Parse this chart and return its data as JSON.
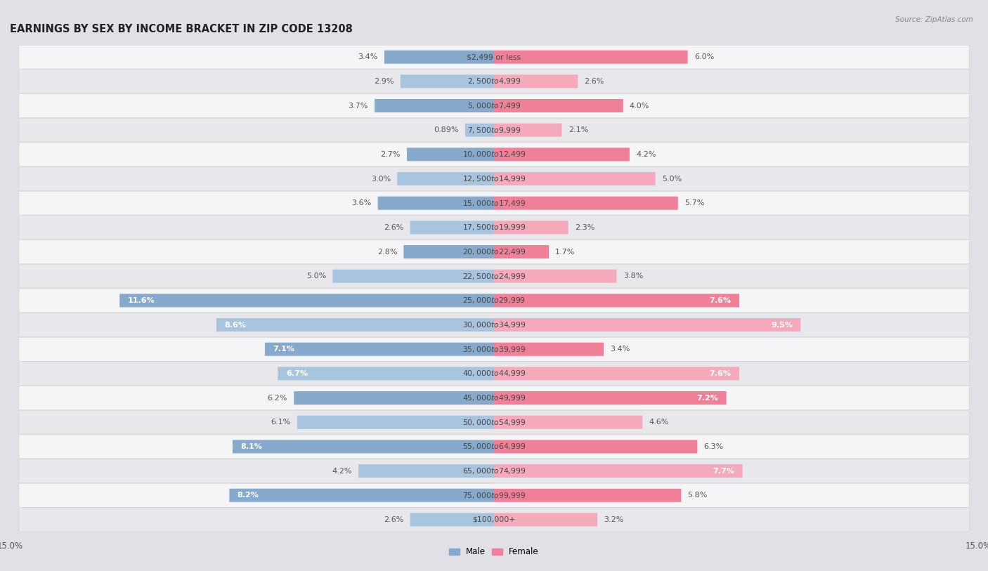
{
  "title": "EARNINGS BY SEX BY INCOME BRACKET IN ZIP CODE 13208",
  "source": "Source: ZipAtlas.com",
  "categories": [
    "$2,499 or less",
    "$2,500 to $4,999",
    "$5,000 to $7,499",
    "$7,500 to $9,999",
    "$10,000 to $12,499",
    "$12,500 to $14,999",
    "$15,000 to $17,499",
    "$17,500 to $19,999",
    "$20,000 to $22,499",
    "$22,500 to $24,999",
    "$25,000 to $29,999",
    "$30,000 to $34,999",
    "$35,000 to $39,999",
    "$40,000 to $44,999",
    "$45,000 to $49,999",
    "$50,000 to $54,999",
    "$55,000 to $64,999",
    "$65,000 to $74,999",
    "$75,000 to $99,999",
    "$100,000+"
  ],
  "male_values": [
    3.4,
    2.9,
    3.7,
    0.89,
    2.7,
    3.0,
    3.6,
    2.6,
    2.8,
    5.0,
    11.6,
    8.6,
    7.1,
    6.7,
    6.2,
    6.1,
    8.1,
    4.2,
    8.2,
    2.6
  ],
  "female_values": [
    6.0,
    2.6,
    4.0,
    2.1,
    4.2,
    5.0,
    5.7,
    2.3,
    1.7,
    3.8,
    7.6,
    9.5,
    3.4,
    7.6,
    7.2,
    4.6,
    6.3,
    7.7,
    5.8,
    3.2
  ],
  "male_color": "#87AACC",
  "female_color": "#F08098",
  "male_color_light": "#A8C4DE",
  "female_color_light": "#F4AABB",
  "row_color_odd": "#f5f5f7",
  "row_color_even": "#e8e8ec",
  "background_color": "#e0e0e6",
  "xlim": 15.0,
  "title_fontsize": 10.5,
  "label_fontsize": 8.0,
  "cat_fontsize": 7.8,
  "axis_fontsize": 8.5,
  "white_label_threshold": 6.5
}
